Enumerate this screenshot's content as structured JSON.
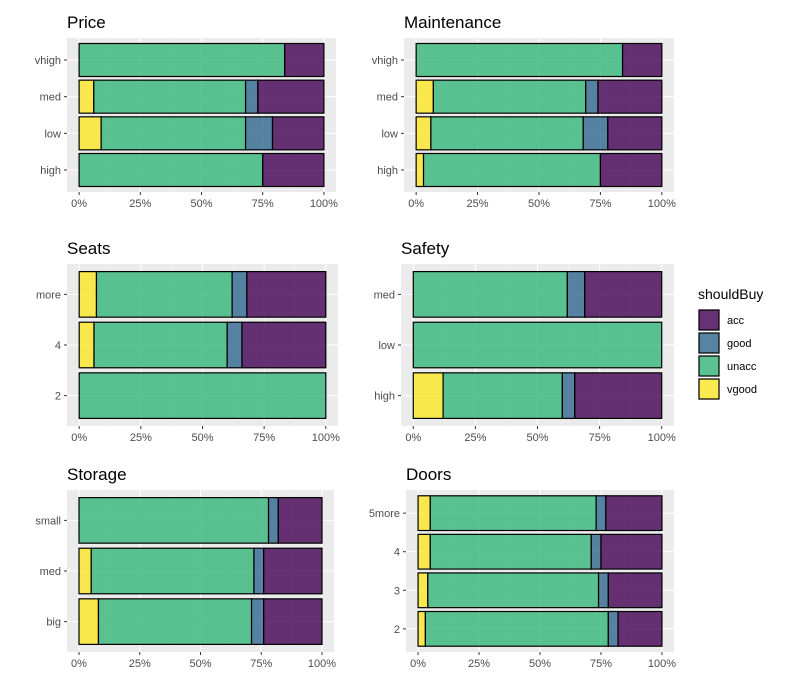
{
  "legend": {
    "title": "shouldBuy",
    "entries": [
      {
        "key": "acc",
        "label": "acc",
        "color": "#440154"
      },
      {
        "key": "good",
        "label": "good",
        "color": "#31688e"
      },
      {
        "key": "unacc",
        "label": "unacc",
        "color": "#35b779"
      },
      {
        "key": "vgood",
        "label": "vgood",
        "color": "#fde725"
      }
    ]
  },
  "x_tick_labels": [
    "0%",
    "25%",
    "50%",
    "75%",
    "100%"
  ],
  "chart_data": [
    {
      "type": "bar",
      "orientation": "horizontal",
      "stacked": "fill",
      "title": "Price",
      "categories": [
        "high",
        "low",
        "med",
        "vhigh"
      ],
      "xlim": [
        0,
        1
      ],
      "series": [
        {
          "name": "vgood",
          "values": [
            0.0,
            0.09,
            0.06,
            0.0
          ]
        },
        {
          "name": "unacc",
          "values": [
            0.75,
            0.59,
            0.62,
            0.84
          ]
        },
        {
          "name": "good",
          "values": [
            0.0,
            0.11,
            0.05,
            0.0
          ]
        },
        {
          "name": "acc",
          "values": [
            0.25,
            0.21,
            0.27,
            0.16
          ]
        }
      ]
    },
    {
      "type": "bar",
      "orientation": "horizontal",
      "stacked": "fill",
      "title": "Maintenance",
      "categories": [
        "high",
        "low",
        "med",
        "vhigh"
      ],
      "xlim": [
        0,
        1
      ],
      "series": [
        {
          "name": "vgood",
          "values": [
            0.03,
            0.06,
            0.07,
            0.0
          ]
        },
        {
          "name": "unacc",
          "values": [
            0.72,
            0.62,
            0.62,
            0.84
          ]
        },
        {
          "name": "good",
          "values": [
            0.0,
            0.1,
            0.05,
            0.0
          ]
        },
        {
          "name": "acc",
          "values": [
            0.25,
            0.22,
            0.26,
            0.16
          ]
        }
      ]
    },
    {
      "type": "bar",
      "orientation": "horizontal",
      "stacked": "fill",
      "title": "Seats",
      "categories": [
        "2",
        "4",
        "more"
      ],
      "xlim": [
        0,
        1
      ],
      "series": [
        {
          "name": "vgood",
          "values": [
            0.0,
            0.06,
            0.07
          ]
        },
        {
          "name": "unacc",
          "values": [
            1.0,
            0.54,
            0.55
          ]
        },
        {
          "name": "good",
          "values": [
            0.0,
            0.06,
            0.06
          ]
        },
        {
          "name": "acc",
          "values": [
            0.0,
            0.34,
            0.32
          ]
        }
      ]
    },
    {
      "type": "bar",
      "orientation": "horizontal",
      "stacked": "fill",
      "title": "Safety",
      "categories": [
        "high",
        "low",
        "med"
      ],
      "xlim": [
        0,
        1
      ],
      "series": [
        {
          "name": "vgood",
          "values": [
            0.12,
            0.0,
            0.0
          ]
        },
        {
          "name": "unacc",
          "values": [
            0.48,
            1.0,
            0.62
          ]
        },
        {
          "name": "good",
          "values": [
            0.05,
            0.0,
            0.07
          ]
        },
        {
          "name": "acc",
          "values": [
            0.35,
            0.0,
            0.31
          ]
        }
      ]
    },
    {
      "type": "bar",
      "orientation": "horizontal",
      "stacked": "fill",
      "title": "Storage",
      "categories": [
        "big",
        "med",
        "small"
      ],
      "xlim": [
        0,
        1
      ],
      "series": [
        {
          "name": "vgood",
          "values": [
            0.08,
            0.05,
            0.0
          ]
        },
        {
          "name": "unacc",
          "values": [
            0.63,
            0.67,
            0.78
          ]
        },
        {
          "name": "good",
          "values": [
            0.05,
            0.04,
            0.04
          ]
        },
        {
          "name": "acc",
          "values": [
            0.24,
            0.24,
            0.18
          ]
        }
      ]
    },
    {
      "type": "bar",
      "orientation": "horizontal",
      "stacked": "fill",
      "title": "Doors",
      "categories": [
        "2",
        "3",
        "4",
        "5more"
      ],
      "xlim": [
        0,
        1
      ],
      "series": [
        {
          "name": "vgood",
          "values": [
            0.03,
            0.04,
            0.05,
            0.05
          ]
        },
        {
          "name": "unacc",
          "values": [
            0.75,
            0.7,
            0.66,
            0.68
          ]
        },
        {
          "name": "good",
          "values": [
            0.04,
            0.04,
            0.04,
            0.04
          ]
        },
        {
          "name": "acc",
          "values": [
            0.18,
            0.22,
            0.25,
            0.23
          ]
        }
      ]
    }
  ]
}
